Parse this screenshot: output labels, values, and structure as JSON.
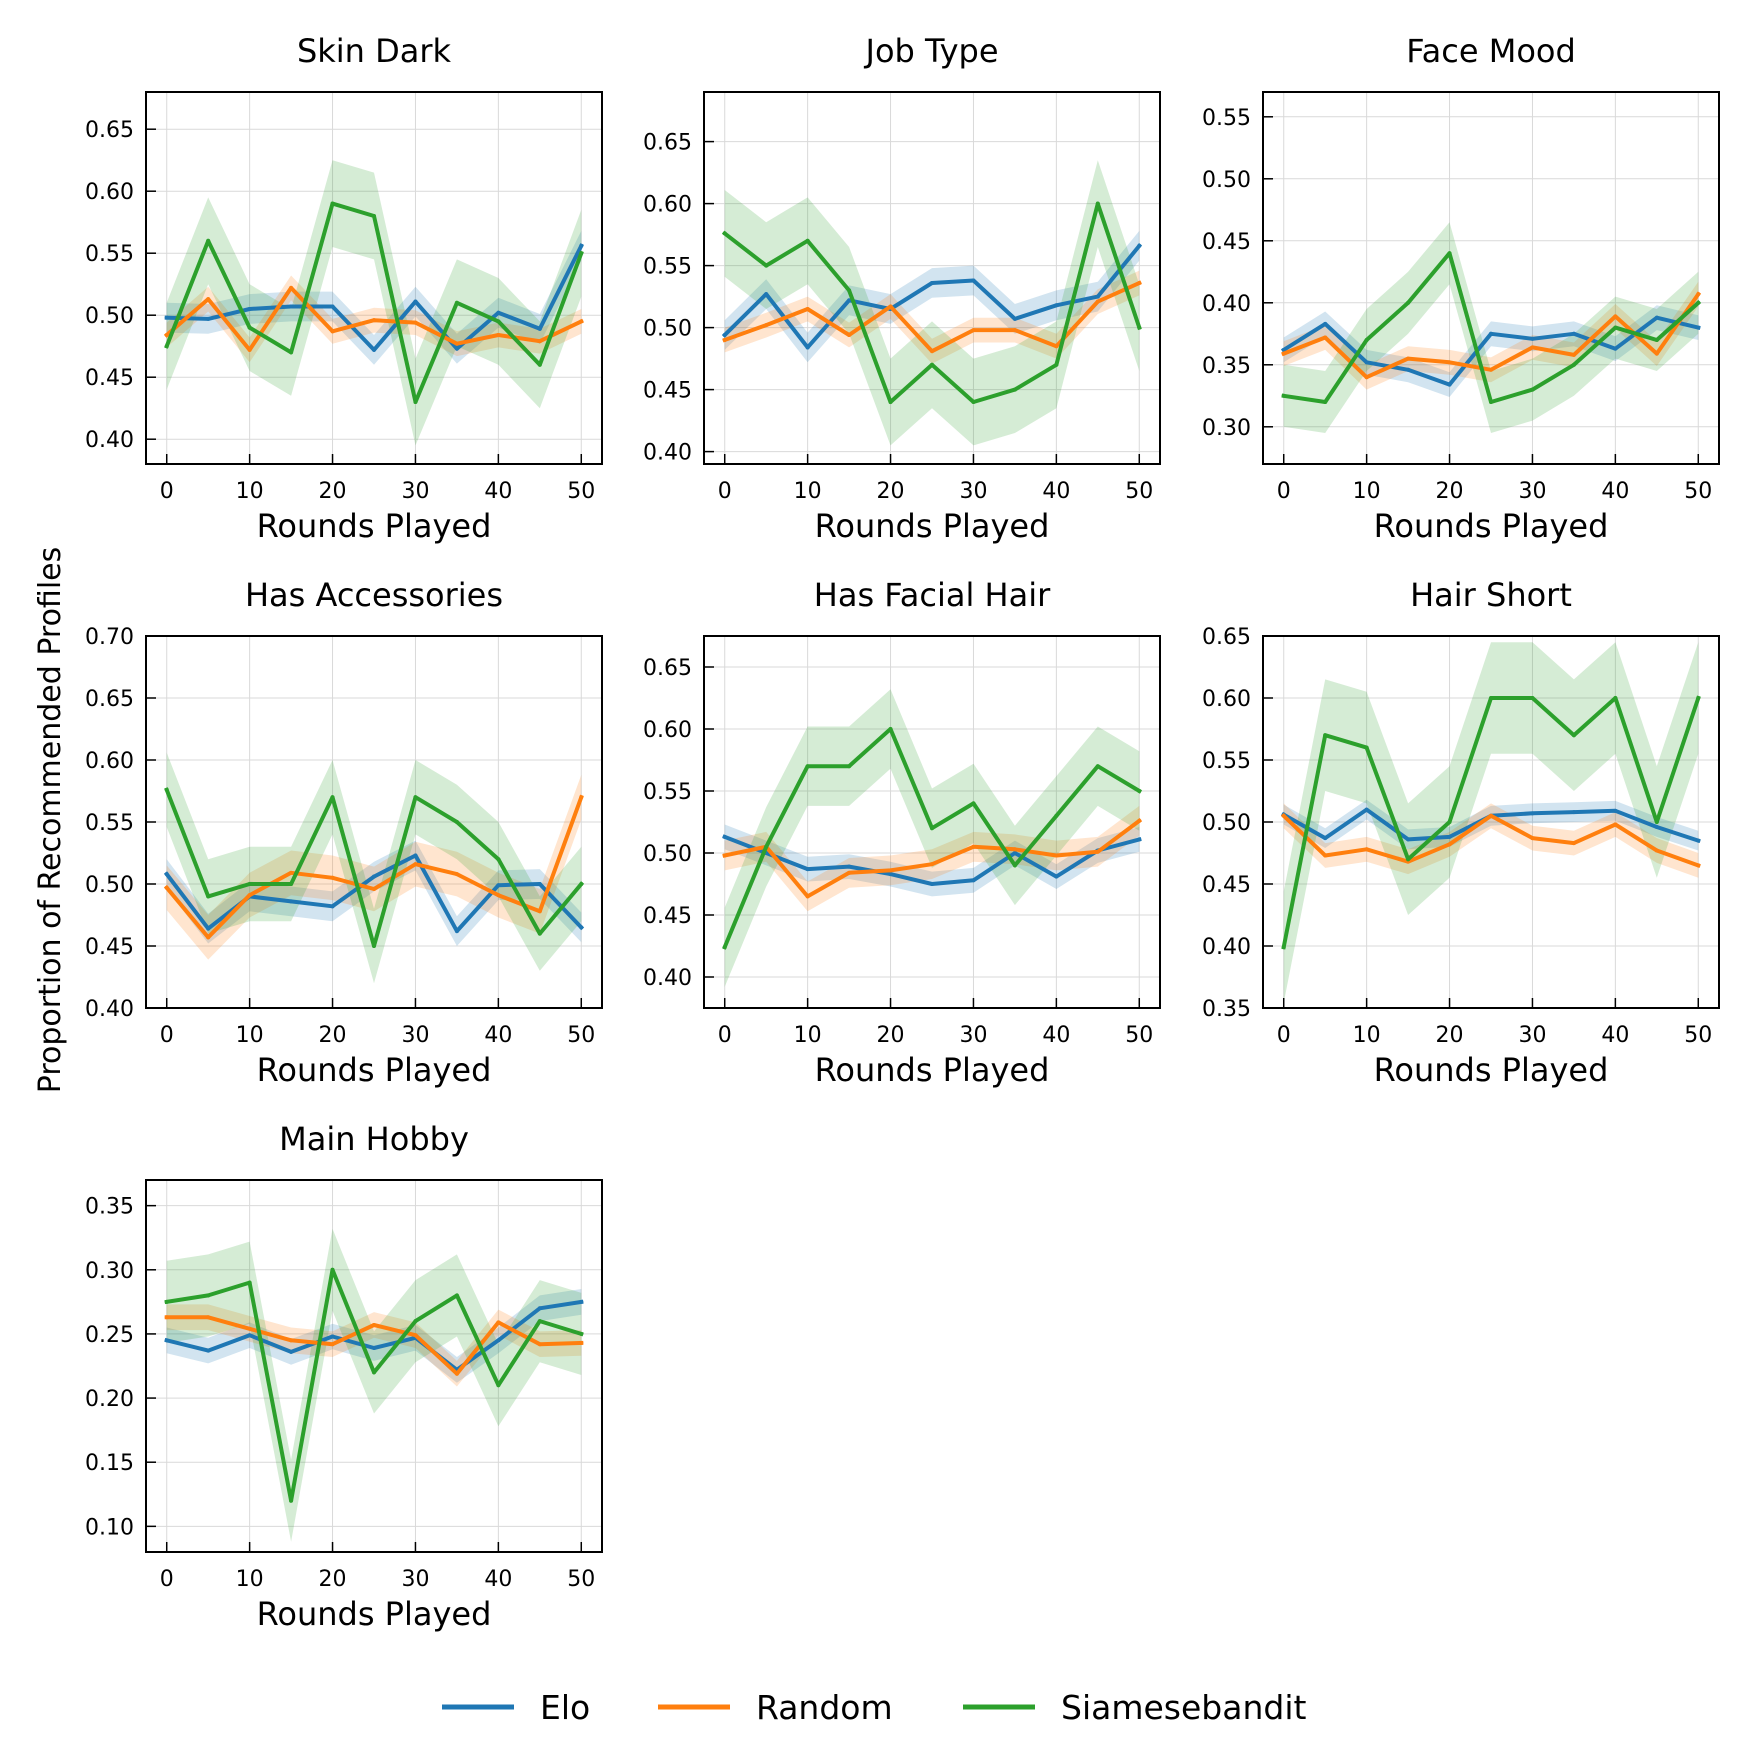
{
  "figure": {
    "ylabel": "Proportion of Recommended Profiles",
    "legend_placement": "bottom-center"
  },
  "legend": [
    {
      "name": "Elo",
      "color": "#1f77b4"
    },
    {
      "name": "Random",
      "color": "#ff7f0e"
    },
    {
      "name": "Siamesebandit",
      "color": "#2ca02c"
    }
  ],
  "chart_data": [
    {
      "type": "line",
      "title": "Skin Dark",
      "xlabel": "Rounds Played",
      "ylabel": "",
      "xlim": [
        -2.5,
        52.5
      ],
      "ylim": [
        0.38,
        0.68
      ],
      "grid": true,
      "xticks": [
        0,
        10,
        20,
        30,
        40,
        50
      ],
      "yticks": [
        0.4,
        0.45,
        0.5,
        0.55,
        0.6,
        0.65
      ],
      "x": [
        0,
        5,
        10,
        15,
        20,
        25,
        30,
        35,
        40,
        45,
        50
      ],
      "series": [
        {
          "name": "Elo",
          "color": "#1f77b4",
          "values": [
            0.498,
            0.497,
            0.505,
            0.507,
            0.507,
            0.472,
            0.511,
            0.473,
            0.502,
            0.489,
            0.556
          ],
          "band": 0.012
        },
        {
          "name": "Random",
          "color": "#ff7f0e",
          "values": [
            0.484,
            0.513,
            0.472,
            0.522,
            0.487,
            0.496,
            0.494,
            0.477,
            0.484,
            0.479,
            0.495
          ],
          "band": 0.01
        },
        {
          "name": "Siamesebandit",
          "color": "#2ca02c",
          "values": [
            0.475,
            0.56,
            0.49,
            0.47,
            0.59,
            0.58,
            0.43,
            0.51,
            0.495,
            0.46,
            0.55
          ],
          "band": 0.035
        }
      ]
    },
    {
      "type": "line",
      "title": "Job Type",
      "xlabel": "Rounds Played",
      "ylabel": "",
      "xlim": [
        -2.5,
        52.5
      ],
      "ylim": [
        0.39,
        0.69
      ],
      "grid": true,
      "xticks": [
        0,
        10,
        20,
        30,
        40,
        50
      ],
      "yticks": [
        0.4,
        0.45,
        0.5,
        0.55,
        0.6,
        0.65
      ],
      "x": [
        0,
        5,
        10,
        15,
        20,
        25,
        30,
        35,
        40,
        45,
        50
      ],
      "series": [
        {
          "name": "Elo",
          "color": "#1f77b4",
          "values": [
            0.494,
            0.527,
            0.484,
            0.522,
            0.515,
            0.536,
            0.538,
            0.507,
            0.518,
            0.525,
            0.566
          ],
          "band": 0.012
        },
        {
          "name": "Random",
          "color": "#ff7f0e",
          "values": [
            0.49,
            0.502,
            0.515,
            0.494,
            0.517,
            0.481,
            0.498,
            0.498,
            0.485,
            0.521,
            0.536
          ],
          "band": 0.01
        },
        {
          "name": "Siamesebandit",
          "color": "#2ca02c",
          "values": [
            0.576,
            0.55,
            0.57,
            0.53,
            0.44,
            0.47,
            0.44,
            0.45,
            0.47,
            0.6,
            0.5
          ],
          "band": 0.035
        }
      ]
    },
    {
      "type": "line",
      "title": "Face Mood",
      "xlabel": "Rounds Played",
      "ylabel": "",
      "xlim": [
        -2.5,
        52.5
      ],
      "ylim": [
        0.27,
        0.57
      ],
      "grid": true,
      "xticks": [
        0,
        10,
        20,
        30,
        40,
        50
      ],
      "yticks": [
        0.3,
        0.35,
        0.4,
        0.45,
        0.5,
        0.55
      ],
      "x": [
        0,
        5,
        10,
        15,
        20,
        25,
        30,
        35,
        40,
        45,
        50
      ],
      "series": [
        {
          "name": "Elo",
          "color": "#1f77b4",
          "values": [
            0.362,
            0.383,
            0.352,
            0.346,
            0.334,
            0.375,
            0.371,
            0.375,
            0.363,
            0.388,
            0.38
          ],
          "band": 0.01
        },
        {
          "name": "Random",
          "color": "#ff7f0e",
          "values": [
            0.359,
            0.372,
            0.34,
            0.355,
            0.352,
            0.346,
            0.364,
            0.358,
            0.389,
            0.359,
            0.407
          ],
          "band": 0.01
        },
        {
          "name": "Siamesebandit",
          "color": "#2ca02c",
          "values": [
            0.325,
            0.32,
            0.37,
            0.4,
            0.44,
            0.32,
            0.33,
            0.35,
            0.38,
            0.37,
            0.4
          ],
          "band": 0.025
        }
      ]
    },
    {
      "type": "line",
      "title": "Has Accessories",
      "xlabel": "Rounds Played",
      "ylabel": "",
      "xlim": [
        -2.5,
        52.5
      ],
      "ylim": [
        0.4,
        0.7
      ],
      "grid": true,
      "xticks": [
        0,
        10,
        20,
        30,
        40,
        50
      ],
      "yticks": [
        0.4,
        0.45,
        0.5,
        0.55,
        0.6,
        0.65,
        0.7
      ],
      "x": [
        0,
        5,
        10,
        15,
        20,
        25,
        30,
        35,
        40,
        45,
        50
      ],
      "series": [
        {
          "name": "Elo",
          "color": "#1f77b4",
          "values": [
            0.508,
            0.464,
            0.49,
            0.486,
            0.482,
            0.506,
            0.523,
            0.462,
            0.499,
            0.5,
            0.465
          ],
          "band": 0.012
        },
        {
          "name": "Random",
          "color": "#ff7f0e",
          "values": [
            0.497,
            0.457,
            0.491,
            0.509,
            0.505,
            0.496,
            0.516,
            0.508,
            0.491,
            0.478,
            0.57
          ],
          "band": 0.018
        },
        {
          "name": "Siamesebandit",
          "color": "#2ca02c",
          "values": [
            0.576,
            0.49,
            0.5,
            0.5,
            0.57,
            0.45,
            0.57,
            0.55,
            0.52,
            0.46,
            0.5
          ],
          "band": 0.03
        }
      ]
    },
    {
      "type": "line",
      "title": "Has Facial Hair",
      "xlabel": "Rounds Played",
      "ylabel": "",
      "xlim": [
        -2.5,
        52.5
      ],
      "ylim": [
        0.375,
        0.675
      ],
      "grid": true,
      "xticks": [
        0,
        10,
        20,
        30,
        40,
        50
      ],
      "yticks": [
        0.4,
        0.45,
        0.5,
        0.55,
        0.6,
        0.65
      ],
      "x": [
        0,
        5,
        10,
        15,
        20,
        25,
        30,
        35,
        40,
        45,
        50
      ],
      "series": [
        {
          "name": "Elo",
          "color": "#1f77b4",
          "values": [
            0.513,
            0.5,
            0.487,
            0.489,
            0.483,
            0.475,
            0.478,
            0.5,
            0.481,
            0.502,
            0.511
          ],
          "band": 0.01
        },
        {
          "name": "Random",
          "color": "#ff7f0e",
          "values": [
            0.498,
            0.505,
            0.465,
            0.484,
            0.486,
            0.491,
            0.505,
            0.503,
            0.498,
            0.501,
            0.526
          ],
          "band": 0.012
        },
        {
          "name": "Siamesebandit",
          "color": "#2ca02c",
          "values": [
            0.424,
            0.505,
            0.57,
            0.57,
            0.6,
            0.52,
            0.54,
            0.49,
            0.53,
            0.57,
            0.55
          ],
          "band": 0.032
        }
      ]
    },
    {
      "type": "line",
      "title": "Hair Short",
      "xlabel": "Rounds Played",
      "ylabel": "",
      "xlim": [
        -2.5,
        52.5
      ],
      "ylim": [
        0.35,
        0.65
      ],
      "grid": true,
      "xticks": [
        0,
        10,
        20,
        30,
        40,
        50
      ],
      "yticks": [
        0.35,
        0.4,
        0.45,
        0.5,
        0.55,
        0.6,
        0.65
      ],
      "x": [
        0,
        5,
        10,
        15,
        20,
        25,
        30,
        35,
        40,
        45,
        50
      ],
      "series": [
        {
          "name": "Elo",
          "color": "#1f77b4",
          "values": [
            0.506,
            0.487,
            0.51,
            0.486,
            0.488,
            0.505,
            0.507,
            0.508,
            0.509,
            0.496,
            0.485
          ],
          "band": 0.008
        },
        {
          "name": "Random",
          "color": "#ff7f0e",
          "values": [
            0.505,
            0.473,
            0.478,
            0.468,
            0.482,
            0.505,
            0.487,
            0.483,
            0.498,
            0.477,
            0.465
          ],
          "band": 0.01
        },
        {
          "name": "Siamesebandit",
          "color": "#2ca02c",
          "values": [
            0.399,
            0.57,
            0.56,
            0.47,
            0.5,
            0.6,
            0.6,
            0.57,
            0.6,
            0.5,
            0.6
          ],
          "band": 0.045
        }
      ]
    },
    {
      "type": "line",
      "title": "Main Hobby",
      "xlabel": "Rounds Played",
      "ylabel": "",
      "xlim": [
        -2.5,
        52.5
      ],
      "ylim": [
        0.08,
        0.37
      ],
      "grid": true,
      "xticks": [
        0,
        10,
        20,
        30,
        40,
        50
      ],
      "yticks": [
        0.1,
        0.15,
        0.2,
        0.25,
        0.3,
        0.35
      ],
      "x": [
        0,
        5,
        10,
        15,
        20,
        25,
        30,
        35,
        40,
        45,
        50
      ],
      "series": [
        {
          "name": "Elo",
          "color": "#1f77b4",
          "values": [
            0.245,
            0.237,
            0.249,
            0.236,
            0.248,
            0.239,
            0.247,
            0.222,
            0.245,
            0.27,
            0.275
          ],
          "band": 0.01
        },
        {
          "name": "Random",
          "color": "#ff7f0e",
          "values": [
            0.263,
            0.263,
            0.254,
            0.245,
            0.242,
            0.257,
            0.249,
            0.219,
            0.259,
            0.242,
            0.243
          ],
          "band": 0.01
        },
        {
          "name": "Siamesebandit",
          "color": "#2ca02c",
          "values": [
            0.275,
            0.28,
            0.29,
            0.12,
            0.3,
            0.22,
            0.26,
            0.28,
            0.21,
            0.26,
            0.25
          ],
          "band": 0.032
        }
      ]
    }
  ]
}
